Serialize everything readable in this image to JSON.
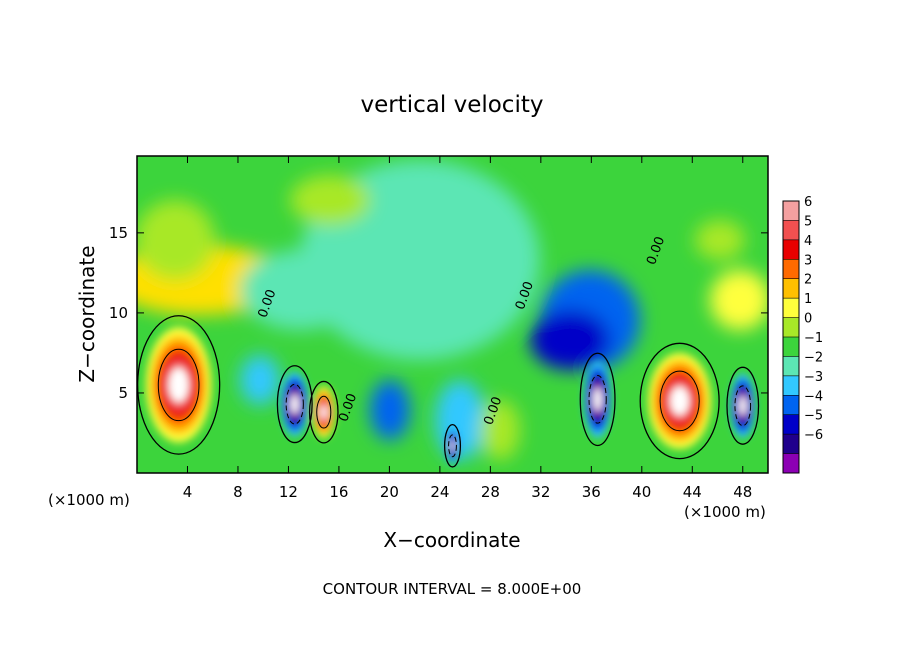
{
  "chart_data": {
    "type": "heatmap",
    "title": "vertical velocity",
    "xlabel": "X−coordinate",
    "ylabel": "Z−coordinate",
    "x_unit": "(×1000 m)",
    "y_unit": "(×1000 m)",
    "xlim": [
      0,
      50
    ],
    "ylim": [
      0,
      19.8
    ],
    "x_ticks": [
      4,
      8,
      12,
      16,
      20,
      24,
      28,
      32,
      36,
      40,
      44,
      48
    ],
    "y_ticks": [
      5,
      10,
      15
    ],
    "footer": "CONTOUR INTERVAL = 8.000E+00",
    "colorbar": {
      "levels": [
        6,
        5,
        4,
        3,
        2,
        1,
        0,
        -1,
        -2,
        -3,
        -4,
        -5,
        -6
      ],
      "labels": [
        "6",
        "5",
        "4",
        "3",
        "2",
        "1",
        "0",
        "−1",
        "−2",
        "−3",
        "−4",
        "−5",
        "−6"
      ],
      "colors": [
        "#f4a0a0",
        "#f25050",
        "#e80000",
        "#ff6a00",
        "#ffc000",
        "#ffff3c",
        "#a8e828",
        "#3cd43c",
        "#5ce6b4",
        "#32c8ff",
        "#0064f0",
        "#0000c8",
        "#20008c",
        "#8c00b4"
      ]
    },
    "contour_labels": [
      {
        "text": "0.00",
        "x": 10.6,
        "y": 10.5
      },
      {
        "text": "0.00",
        "x": 17.0,
        "y": 4.0
      },
      {
        "text": "0.00",
        "x": 28.5,
        "y": 3.8
      },
      {
        "text": "0.00",
        "x": 31.0,
        "y": 11.0
      },
      {
        "text": "0.00",
        "x": 41.4,
        "y": 13.8
      }
    ],
    "features": [
      {
        "label": "updraft",
        "cx": 3.3,
        "cy": 5.5,
        "rx": 2.6,
        "ry": 3.6,
        "value": 6
      },
      {
        "label": "updraft",
        "cx": 14.8,
        "cy": 3.8,
        "rx": 0.9,
        "ry": 1.6,
        "value": 4
      },
      {
        "label": "updraft",
        "cx": 43.0,
        "cy": 4.5,
        "rx": 2.5,
        "ry": 3.0,
        "value": 6
      },
      {
        "label": "downdraft",
        "cx": 12.5,
        "cy": 4.3,
        "rx": 1.1,
        "ry": 2.0,
        "value": -6
      },
      {
        "label": "downdraft",
        "cx": 25.0,
        "cy": 1.7,
        "rx": 0.5,
        "ry": 1.1,
        "value": -6
      },
      {
        "label": "downdraft",
        "cx": 36.5,
        "cy": 4.6,
        "rx": 1.1,
        "ry": 2.4,
        "value": -6
      },
      {
        "label": "downdraft",
        "cx": 48.0,
        "cy": 4.2,
        "rx": 1.0,
        "ry": 2.0,
        "value": -6
      }
    ]
  }
}
